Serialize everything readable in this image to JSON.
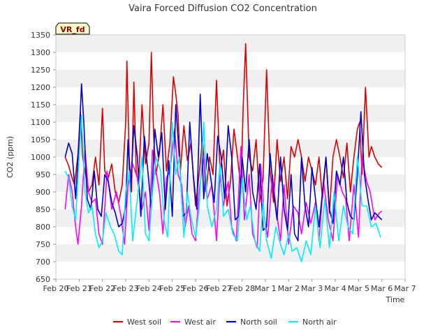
{
  "chart_data": {
    "type": "line",
    "title": "Vaira Forced Diffusion CO2 Concentration",
    "tag": "VR_fd",
    "xlabel": "Time",
    "ylabel": "CO2 (ppm)",
    "ylim": [
      650,
      1350
    ],
    "yticks": [
      650,
      700,
      750,
      800,
      850,
      900,
      950,
      1000,
      1050,
      1100,
      1150,
      1200,
      1250,
      1300,
      1350
    ],
    "xlim": [
      0,
      15
    ],
    "xticks": [
      {
        "x": 0,
        "label": "Feb 20"
      },
      {
        "x": 1,
        "label": "Feb 21"
      },
      {
        "x": 2,
        "label": "Feb 22"
      },
      {
        "x": 3,
        "label": "Feb 23"
      },
      {
        "x": 4,
        "label": "Feb 24"
      },
      {
        "x": 5,
        "label": "Feb 25"
      },
      {
        "x": 6,
        "label": "Feb 26"
      },
      {
        "x": 7,
        "label": "Feb 27"
      },
      {
        "x": 8,
        "label": "Feb 28"
      },
      {
        "x": 9,
        "label": "Mar 1"
      },
      {
        "x": 10,
        "label": "Mar 2"
      },
      {
        "x": 11,
        "label": "Mar 3"
      },
      {
        "x": 12,
        "label": "Mar 4"
      },
      {
        "x": 13,
        "label": "Mar 5"
      },
      {
        "x": 14,
        "label": "Mar 6"
      },
      {
        "x": 15,
        "label": "Mar 7"
      }
    ],
    "grid": "horizontal bands",
    "legend_position": "bottom",
    "series": [
      {
        "name": "West soil",
        "color": "#dd0000",
        "x": [
          0.4,
          0.55,
          0.7,
          0.8,
          0.95,
          1.05,
          1.15,
          1.25,
          1.4,
          1.55,
          1.7,
          1.85,
          2.0,
          2.1,
          2.25,
          2.4,
          2.55,
          2.7,
          2.85,
          3.0,
          3.05,
          3.15,
          3.25,
          3.35,
          3.45,
          3.55,
          3.7,
          3.85,
          4.0,
          4.1,
          4.2,
          4.3,
          4.45,
          4.6,
          4.75,
          4.9,
          5.05,
          5.15,
          5.25,
          5.35,
          5.5,
          5.65,
          5.8,
          6.0,
          6.15,
          6.3,
          6.45,
          6.6,
          6.75,
          6.9,
          7.05,
          7.2,
          7.35,
          7.5,
          7.65,
          7.8,
          7.95,
          8.05,
          8.15,
          8.3,
          8.45,
          8.6,
          8.75,
          8.9,
          9.05,
          9.2,
          9.35,
          9.5,
          9.65,
          9.8,
          9.95,
          10.1,
          10.25,
          10.4,
          10.55,
          10.7,
          10.85,
          11.0,
          11.15,
          11.3,
          11.45,
          11.6,
          11.75,
          11.9,
          12.05,
          12.2,
          12.35,
          12.5,
          12.65,
          12.8,
          12.95,
          13.05,
          13.15,
          13.3,
          13.45,
          13.55,
          13.7,
          13.85,
          14.0
        ],
        "values": [
          1000,
          975,
          940,
          920,
          1010,
          1130,
          1000,
          960,
          900,
          920,
          1000,
          920,
          1140,
          960,
          940,
          980,
          900,
          870,
          920,
          1100,
          1275,
          1000,
          900,
          1215,
          960,
          920,
          1150,
          980,
          1040,
          1300,
          1060,
          950,
          1010,
          1150,
          960,
          1040,
          1230,
          1180,
          1120,
          960,
          1090,
          990,
          1040,
          860,
          950,
          1050,
          900,
          1000,
          950,
          1220,
          960,
          1020,
          860,
          930,
          1080,
          1000,
          910,
          1150,
          1325,
          1000,
          960,
          1050,
          870,
          940,
          1250,
          960,
          870,
          1050,
          930,
          1000,
          880,
          1030,
          1000,
          1050,
          1000,
          930,
          1000,
          960,
          920,
          1000,
          880,
          1000,
          840,
          1000,
          1050,
          1000,
          940,
          1040,
          900,
          1000,
          1080,
          1100,
          950,
          1200,
          1000,
          1030,
          1000,
          980,
          970
        ]
      },
      {
        "name": "West air",
        "color": "#ff00ff",
        "x": [
          0.4,
          0.55,
          0.7,
          0.85,
          0.95,
          1.1,
          1.25,
          1.4,
          1.55,
          1.7,
          1.85,
          2.0,
          2.2,
          2.4,
          2.6,
          2.8,
          2.95,
          3.1,
          3.3,
          3.5,
          3.7,
          3.85,
          4.0,
          4.15,
          4.3,
          4.45,
          4.6,
          4.75,
          4.9,
          5.1,
          5.25,
          5.4,
          5.55,
          5.7,
          5.85,
          6.0,
          6.15,
          6.35,
          6.5,
          6.7,
          6.9,
          7.05,
          7.2,
          7.4,
          7.55,
          7.75,
          7.95,
          8.1,
          8.3,
          8.45,
          8.65,
          8.8,
          8.95,
          9.1,
          9.3,
          9.5,
          9.65,
          9.8,
          10.0,
          10.2,
          10.4,
          10.55,
          10.75,
          10.95,
          11.15,
          11.3,
          11.5,
          11.7,
          11.9,
          12.1,
          12.3,
          12.45,
          12.6,
          12.8,
          13.0,
          13.15,
          13.35,
          13.5,
          13.7,
          13.9,
          14.0
        ],
        "values": [
          850,
          950,
          900,
          800,
          750,
          860,
          1020,
          900,
          870,
          880,
          780,
          750,
          960,
          850,
          900,
          830,
          750,
          920,
          980,
          940,
          850,
          900,
          790,
          1020,
          960,
          900,
          780,
          940,
          960,
          1080,
          950,
          920,
          800,
          860,
          780,
          760,
          900,
          1000,
          880,
          920,
          760,
          950,
          860,
          930,
          800,
          760,
          1030,
          820,
          950,
          780,
          740,
          980,
          830,
          770,
          950,
          830,
          760,
          920,
          750,
          860,
          840,
          780,
          870,
          810,
          870,
          760,
          930,
          820,
          760,
          950,
          900,
          880,
          760,
          920,
          770,
          1000,
          930,
          900,
          820,
          840,
          845
        ]
      },
      {
        "name": "North soil",
        "color": "#0000cc",
        "x": [
          0.4,
          0.55,
          0.7,
          0.85,
          1.0,
          1.1,
          1.2,
          1.35,
          1.5,
          1.65,
          1.8,
          1.95,
          2.1,
          2.25,
          2.4,
          2.55,
          2.7,
          2.85,
          3.0,
          3.1,
          3.2,
          3.35,
          3.5,
          3.65,
          3.8,
          3.95,
          4.1,
          4.25,
          4.4,
          4.55,
          4.7,
          4.85,
          5.0,
          5.15,
          5.3,
          5.45,
          5.6,
          5.75,
          5.9,
          6.05,
          6.2,
          6.35,
          6.5,
          6.65,
          6.8,
          6.95,
          7.1,
          7.25,
          7.4,
          7.55,
          7.7,
          7.85,
          8.0,
          8.15,
          8.3,
          8.45,
          8.6,
          8.75,
          8.9,
          9.05,
          9.2,
          9.35,
          9.5,
          9.65,
          9.8,
          9.95,
          10.1,
          10.25,
          10.4,
          10.55,
          10.7,
          10.85,
          11.0,
          11.15,
          11.3,
          11.45,
          11.6,
          11.75,
          11.9,
          12.05,
          12.2,
          12.35,
          12.5,
          12.65,
          12.8,
          12.95,
          13.1,
          13.25,
          13.4,
          13.55,
          13.7,
          13.85,
          14.0
        ],
        "values": [
          1000,
          1040,
          1010,
          880,
          1050,
          1210,
          1100,
          880,
          850,
          960,
          850,
          830,
          950,
          930,
          870,
          840,
          800,
          810,
          860,
          1050,
          900,
          1090,
          1000,
          830,
          1060,
          960,
          850,
          1080,
          1000,
          1070,
          850,
          990,
          830,
          1150,
          1000,
          830,
          840,
          1100,
          950,
          850,
          1180,
          880,
          1010,
          940,
          870,
          1060,
          1000,
          880,
          1090,
          1000,
          820,
          830,
          1000,
          900,
          1050,
          900,
          850,
          980,
          790,
          800,
          1010,
          900,
          820,
          1000,
          850,
          790,
          950,
          780,
          760,
          1000,
          860,
          800,
          970,
          880,
          800,
          900,
          1000,
          850,
          810,
          960,
          920,
          1000,
          870,
          830,
          820,
          950,
          1130,
          950,
          880,
          820,
          840,
          830,
          820
        ]
      },
      {
        "name": "North air",
        "color": "#00eeff",
        "x": [
          0.4,
          0.55,
          0.7,
          0.85,
          1.0,
          1.1,
          1.25,
          1.4,
          1.55,
          1.7,
          1.85,
          2.0,
          2.15,
          2.35,
          2.5,
          2.7,
          2.85,
          3.0,
          3.15,
          3.3,
          3.5,
          3.7,
          3.85,
          4.0,
          4.15,
          4.3,
          4.5,
          4.65,
          4.8,
          5.0,
          5.15,
          5.3,
          5.5,
          5.65,
          5.8,
          6.0,
          6.15,
          6.35,
          6.5,
          6.7,
          6.9,
          7.05,
          7.2,
          7.4,
          7.6,
          7.8,
          8.0,
          8.2,
          8.35,
          8.55,
          8.75,
          8.9,
          9.05,
          9.25,
          9.45,
          9.6,
          9.8,
          10.0,
          10.15,
          10.35,
          10.55,
          10.75,
          10.95,
          11.15,
          11.35,
          11.55,
          11.75,
          11.95,
          12.15,
          12.35,
          12.55,
          12.75,
          12.95,
          13.15,
          13.35,
          13.55,
          13.75,
          13.95
        ],
        "values": [
          960,
          940,
          860,
          820,
          1000,
          1120,
          900,
          840,
          860,
          780,
          740,
          760,
          840,
          800,
          780,
          730,
          720,
          900,
          960,
          760,
          880,
          1000,
          780,
          760,
          900,
          1000,
          960,
          820,
          770,
          1100,
          950,
          1000,
          770,
          900,
          830,
          770,
          850,
          1100,
          860,
          800,
          850,
          980,
          830,
          850,
          780,
          760,
          940,
          820,
          860,
          760,
          730,
          870,
          760,
          710,
          800,
          760,
          720,
          780,
          730,
          740,
          700,
          760,
          720,
          860,
          740,
          880,
          740,
          900,
          760,
          860,
          800,
          780,
          1000,
          860,
          860,
          800,
          810,
          770
        ]
      }
    ]
  }
}
